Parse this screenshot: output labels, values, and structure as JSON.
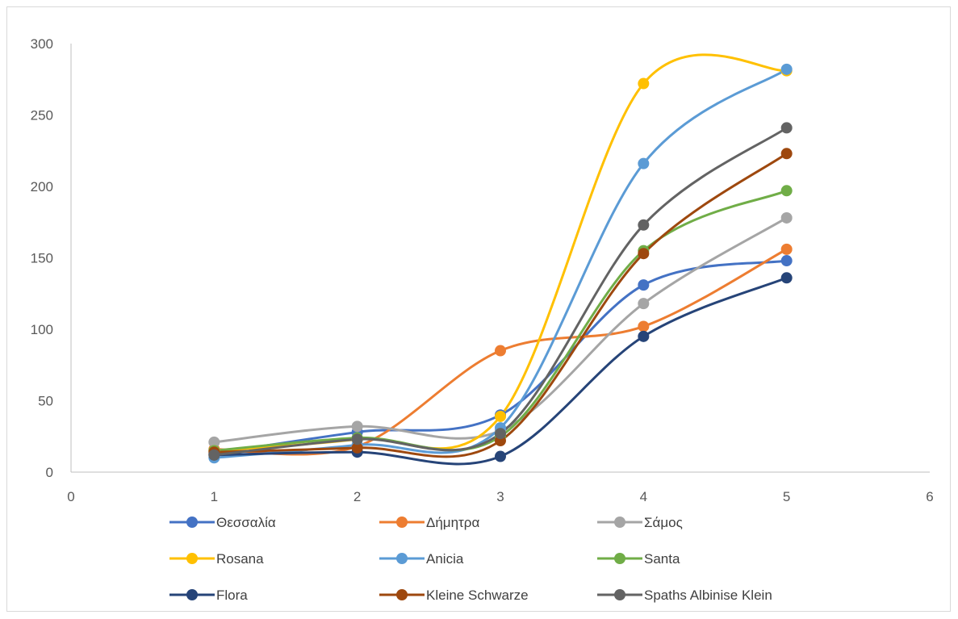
{
  "chart_data": {
    "type": "line",
    "smooth": true,
    "markers": "circle",
    "xlim": [
      0,
      6
    ],
    "ylim": [
      0,
      300
    ],
    "x_ticks": [
      0,
      1,
      2,
      3,
      4,
      5,
      6
    ],
    "y_ticks": [
      0,
      50,
      100,
      150,
      200,
      250,
      300
    ],
    "grid": false,
    "legend_position": "bottom",
    "x": [
      1,
      2,
      3,
      4,
      5
    ],
    "series": [
      {
        "name": "Θεσσαλία",
        "color": "#4472C4",
        "values": [
          13,
          28,
          40,
          131,
          148
        ]
      },
      {
        "name": "Δήμητρα",
        "color": "#ED7D31",
        "values": [
          16,
          18,
          85,
          102,
          156
        ]
      },
      {
        "name": "Σάμος",
        "color": "#A5A5A5",
        "values": [
          21,
          32,
          29,
          118,
          178
        ]
      },
      {
        "name": "Rosana",
        "color": "#FFC000",
        "values": [
          15,
          23,
          39,
          272,
          281
        ]
      },
      {
        "name": "Anicia",
        "color": "#5B9BD5",
        "values": [
          10,
          19,
          31,
          216,
          282
        ]
      },
      {
        "name": "Santa",
        "color": "#70AD47",
        "values": [
          15,
          24,
          25,
          155,
          197
        ]
      },
      {
        "name": "Flora",
        "color": "#264478",
        "values": [
          12,
          14,
          11,
          95,
          136
        ]
      },
      {
        "name": "Kleine Schwarze",
        "color": "#9E480E",
        "values": [
          14,
          17,
          22,
          153,
          223
        ]
      },
      {
        "name": "Spaths Albinise Klein",
        "color": "#636363",
        "values": [
          12,
          23,
          27,
          173,
          241
        ]
      }
    ]
  }
}
